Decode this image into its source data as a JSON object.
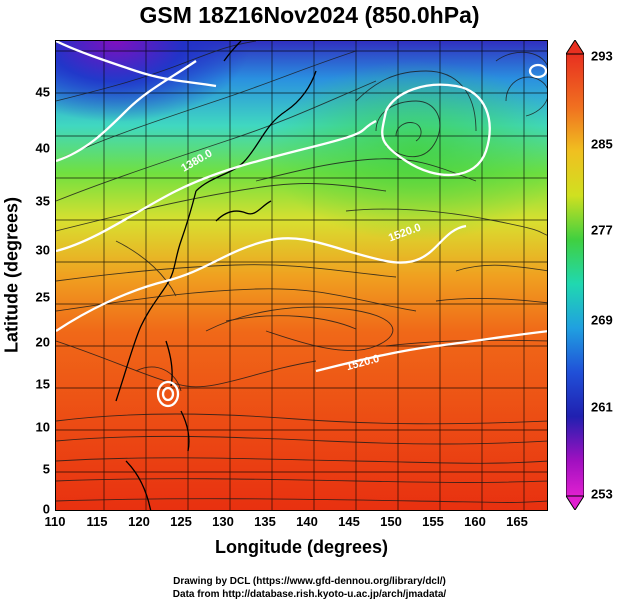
{
  "title": "GSM 18Z16Nov2024 (850.0hPa)",
  "x_axis": {
    "label": "Longitude (degrees)",
    "ticks": [
      "110",
      "115",
      "120",
      "125",
      "130",
      "135",
      "140",
      "145",
      "150",
      "155",
      "160",
      "165"
    ]
  },
  "y_axis": {
    "label": "Latitude  (degrees)",
    "ticks": [
      "45",
      "40",
      "35",
      "30",
      "25",
      "20",
      "15",
      "10",
      "5",
      "0"
    ]
  },
  "colorbar": {
    "ticks": [
      "293",
      "285",
      "277",
      "269",
      "261",
      "253"
    ]
  },
  "contour_labels": [
    "1380.0",
    "1520.0",
    "1520.0"
  ],
  "credit": {
    "line1": "Drawing by DCL (https://www.gfd-dennou.org/library/dcl/)",
    "line2": "Data from http://database.rish.kyoto-u.ac.jp/arch/jmadata/"
  },
  "colors": {
    "warm": "#e83010",
    "cool": "#1040d0",
    "mid": "#40d040",
    "contour": "#ffffff"
  }
}
